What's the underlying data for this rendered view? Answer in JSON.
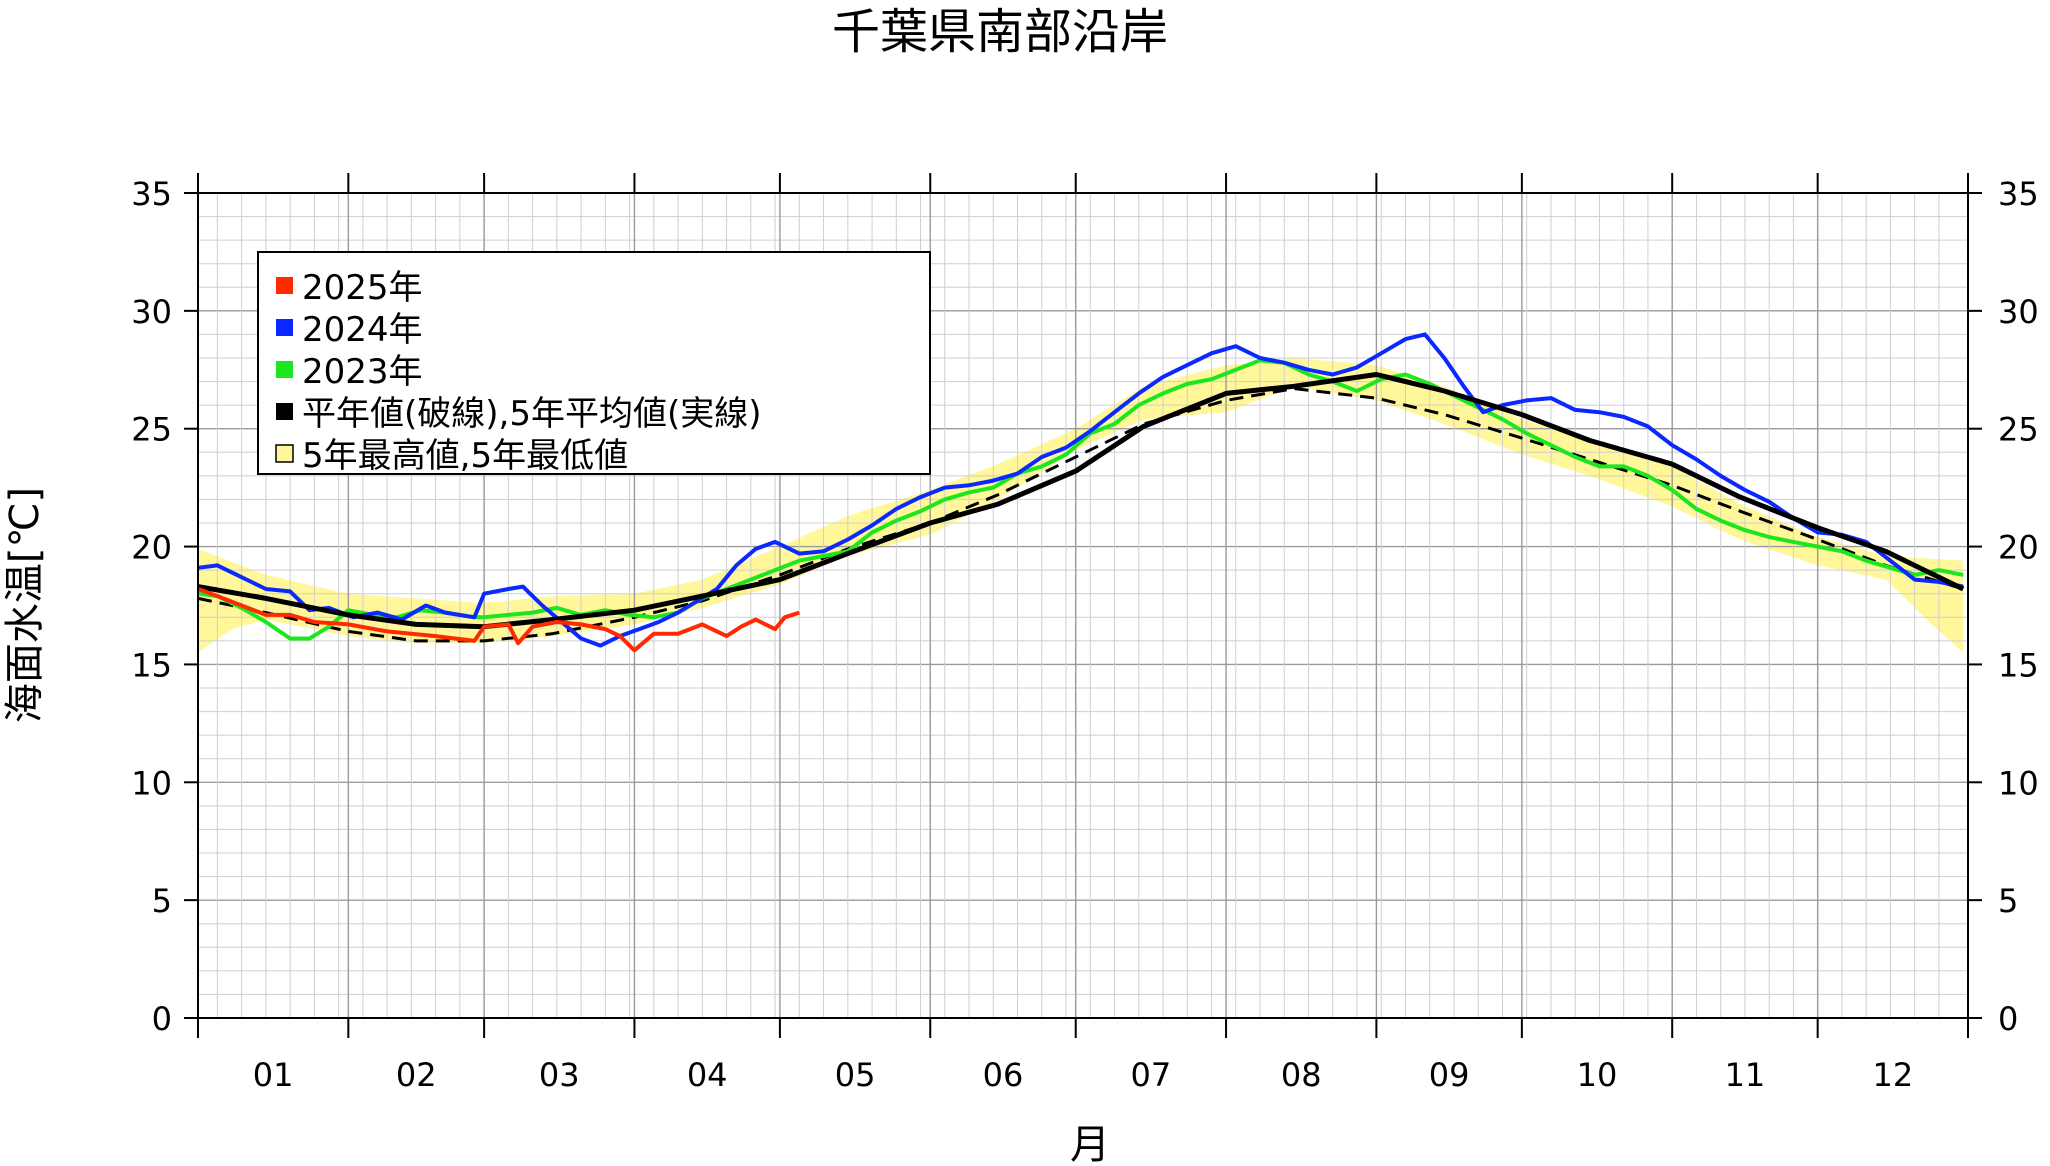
{
  "chart_data": {
    "type": "line",
    "title": "千葉県南部沿岸",
    "xlabel": "月",
    "ylabel": "海面水温[℃]",
    "ylim": [
      0,
      35
    ],
    "yticks": [
      "0",
      "5",
      "10",
      "15",
      "20",
      "25",
      "30",
      "35"
    ],
    "months": [
      "01",
      "02",
      "03",
      "04",
      "05",
      "06",
      "07",
      "08",
      "09",
      "10",
      "11",
      "12"
    ],
    "grid": true,
    "legend_position": "top-left",
    "legend": [
      {
        "label": "2025年",
        "color": "#ff2a00",
        "swatch": "solid"
      },
      {
        "label": "2024年",
        "color": "#0a28ff",
        "swatch": "solid"
      },
      {
        "label": "2023年",
        "color": "#1ee61e",
        "swatch": "solid"
      },
      {
        "label": "平年値(破線),5年平均値(実線)",
        "color": "#000000",
        "swatch": "solid"
      },
      {
        "label": "5年最高値,5年最低値",
        "color": "#fff799",
        "swatch": "box"
      }
    ],
    "colors": {
      "y2025": "#ff2a00",
      "y2024": "#0a28ff",
      "y2023": "#1ee61e",
      "mean": "#000000",
      "band": "#fff799"
    },
    "band_max": [
      [
        1,
        19.9
      ],
      [
        15,
        18.8
      ],
      [
        32,
        18.0
      ],
      [
        46,
        17.8
      ],
      [
        60,
        17.6
      ],
      [
        74,
        17.9
      ],
      [
        91,
        18.0
      ],
      [
        105,
        18.6
      ],
      [
        121,
        20.0
      ],
      [
        135,
        21.3
      ],
      [
        152,
        22.4
      ],
      [
        166,
        23.5
      ],
      [
        182,
        25.0
      ],
      [
        196,
        26.8
      ],
      [
        213,
        27.7
      ],
      [
        227,
        28.0
      ],
      [
        244,
        27.7
      ],
      [
        258,
        26.8
      ],
      [
        274,
        25.4
      ],
      [
        288,
        24.5
      ],
      [
        305,
        23.4
      ],
      [
        319,
        21.8
      ],
      [
        335,
        20.4
      ],
      [
        349,
        19.6
      ],
      [
        365,
        19.4
      ]
    ],
    "band_min": [
      [
        1,
        15.5
      ],
      [
        8,
        16.5
      ],
      [
        15,
        16.9
      ],
      [
        32,
        16.2
      ],
      [
        46,
        15.9
      ],
      [
        60,
        15.9
      ],
      [
        74,
        16.2
      ],
      [
        91,
        16.7
      ],
      [
        105,
        17.4
      ],
      [
        121,
        18.4
      ],
      [
        135,
        19.6
      ],
      [
        152,
        20.5
      ],
      [
        166,
        22.0
      ],
      [
        182,
        24.1
      ],
      [
        196,
        25.4
      ],
      [
        213,
        25.7
      ],
      [
        227,
        26.8
      ],
      [
        244,
        26.2
      ],
      [
        258,
        25.2
      ],
      [
        274,
        23.9
      ],
      [
        288,
        23.0
      ],
      [
        305,
        21.7
      ],
      [
        319,
        20.3
      ],
      [
        335,
        19.2
      ],
      [
        349,
        18.6
      ],
      [
        358,
        16.8
      ],
      [
        365,
        15.5
      ]
    ],
    "normal": [
      [
        1,
        17.8
      ],
      [
        15,
        17.2
      ],
      [
        32,
        16.4
      ],
      [
        46,
        16.0
      ],
      [
        60,
        16.0
      ],
      [
        74,
        16.3
      ],
      [
        91,
        17.0
      ],
      [
        105,
        17.7
      ],
      [
        121,
        18.8
      ],
      [
        135,
        19.9
      ],
      [
        152,
        21.0
      ],
      [
        166,
        22.2
      ],
      [
        182,
        23.8
      ],
      [
        196,
        25.2
      ],
      [
        213,
        26.2
      ],
      [
        227,
        26.7
      ],
      [
        244,
        26.3
      ],
      [
        258,
        25.6
      ],
      [
        274,
        24.6
      ],
      [
        288,
        23.7
      ],
      [
        305,
        22.6
      ],
      [
        319,
        21.5
      ],
      [
        335,
        20.3
      ],
      [
        349,
        19.2
      ],
      [
        365,
        18.2
      ]
    ],
    "mean5": [
      [
        1,
        18.3
      ],
      [
        15,
        17.8
      ],
      [
        32,
        17.1
      ],
      [
        46,
        16.7
      ],
      [
        60,
        16.6
      ],
      [
        74,
        16.9
      ],
      [
        91,
        17.3
      ],
      [
        105,
        17.9
      ],
      [
        121,
        18.6
      ],
      [
        135,
        19.7
      ],
      [
        152,
        21.0
      ],
      [
        166,
        21.8
      ],
      [
        182,
        23.2
      ],
      [
        196,
        25.1
      ],
      [
        213,
        26.5
      ],
      [
        227,
        26.8
      ],
      [
        244,
        27.3
      ],
      [
        258,
        26.6
      ],
      [
        274,
        25.6
      ],
      [
        288,
        24.5
      ],
      [
        305,
        23.5
      ],
      [
        319,
        22.1
      ],
      [
        335,
        20.8
      ],
      [
        349,
        19.8
      ],
      [
        365,
        18.2
      ]
    ],
    "y2025": [
      [
        1,
        18.2
      ],
      [
        5,
        17.9
      ],
      [
        10,
        17.5
      ],
      [
        15,
        17.1
      ],
      [
        20,
        17.1
      ],
      [
        25,
        16.8
      ],
      [
        32,
        16.7
      ],
      [
        40,
        16.4
      ],
      [
        50,
        16.2
      ],
      [
        58,
        16.0
      ],
      [
        60,
        16.6
      ],
      [
        65,
        16.7
      ],
      [
        67,
        15.9
      ],
      [
        70,
        16.6
      ],
      [
        75,
        16.8
      ],
      [
        80,
        16.7
      ],
      [
        85,
        16.5
      ],
      [
        88,
        16.2
      ],
      [
        91,
        15.6
      ],
      [
        95,
        16.3
      ],
      [
        100,
        16.3
      ],
      [
        105,
        16.7
      ],
      [
        108,
        16.4
      ],
      [
        110,
        16.2
      ],
      [
        113,
        16.6
      ],
      [
        116,
        16.9
      ],
      [
        120,
        16.5
      ],
      [
        122,
        17.0
      ],
      [
        125,
        17.2
      ]
    ],
    "y2024": [
      [
        1,
        19.1
      ],
      [
        5,
        19.2
      ],
      [
        10,
        18.7
      ],
      [
        15,
        18.2
      ],
      [
        20,
        18.1
      ],
      [
        24,
        17.3
      ],
      [
        28,
        17.4
      ],
      [
        33,
        17.0
      ],
      [
        38,
        17.2
      ],
      [
        43,
        16.9
      ],
      [
        48,
        17.5
      ],
      [
        52,
        17.2
      ],
      [
        58,
        17.0
      ],
      [
        60,
        18.0
      ],
      [
        65,
        18.2
      ],
      [
        68,
        18.3
      ],
      [
        72,
        17.5
      ],
      [
        76,
        16.8
      ],
      [
        80,
        16.1
      ],
      [
        84,
        15.8
      ],
      [
        88,
        16.2
      ],
      [
        92,
        16.5
      ],
      [
        96,
        16.8
      ],
      [
        100,
        17.2
      ],
      [
        104,
        17.7
      ],
      [
        108,
        18.2
      ],
      [
        112,
        19.2
      ],
      [
        116,
        19.9
      ],
      [
        120,
        20.2
      ],
      [
        125,
        19.7
      ],
      [
        130,
        19.8
      ],
      [
        135,
        20.3
      ],
      [
        140,
        20.9
      ],
      [
        145,
        21.6
      ],
      [
        150,
        22.1
      ],
      [
        155,
        22.5
      ],
      [
        160,
        22.6
      ],
      [
        165,
        22.8
      ],
      [
        170,
        23.1
      ],
      [
        175,
        23.8
      ],
      [
        180,
        24.2
      ],
      [
        185,
        24.9
      ],
      [
        190,
        25.7
      ],
      [
        195,
        26.5
      ],
      [
        200,
        27.2
      ],
      [
        205,
        27.7
      ],
      [
        210,
        28.2
      ],
      [
        215,
        28.5
      ],
      [
        220,
        28.0
      ],
      [
        225,
        27.8
      ],
      [
        230,
        27.5
      ],
      [
        235,
        27.3
      ],
      [
        240,
        27.6
      ],
      [
        245,
        28.2
      ],
      [
        250,
        28.8
      ],
      [
        254,
        29.0
      ],
      [
        258,
        28.0
      ],
      [
        262,
        26.8
      ],
      [
        266,
        25.7
      ],
      [
        270,
        26.0
      ],
      [
        275,
        26.2
      ],
      [
        280,
        26.3
      ],
      [
        285,
        25.8
      ],
      [
        290,
        25.7
      ],
      [
        295,
        25.5
      ],
      [
        300,
        25.1
      ],
      [
        305,
        24.3
      ],
      [
        310,
        23.7
      ],
      [
        315,
        23.0
      ],
      [
        320,
        22.4
      ],
      [
        325,
        21.9
      ],
      [
        330,
        21.2
      ],
      [
        335,
        20.6
      ],
      [
        340,
        20.5
      ],
      [
        345,
        20.2
      ],
      [
        350,
        19.4
      ],
      [
        355,
        18.6
      ],
      [
        360,
        18.5
      ],
      [
        365,
        18.3
      ]
    ],
    "y2023": [
      [
        1,
        18.0
      ],
      [
        5,
        17.9
      ],
      [
        10,
        17.4
      ],
      [
        15,
        16.8
      ],
      [
        20,
        16.1
      ],
      [
        24,
        16.1
      ],
      [
        28,
        16.6
      ],
      [
        32,
        17.3
      ],
      [
        37,
        17.1
      ],
      [
        42,
        17.0
      ],
      [
        47,
        17.3
      ],
      [
        52,
        17.2
      ],
      [
        58,
        17.0
      ],
      [
        60,
        17.0
      ],
      [
        65,
        17.1
      ],
      [
        70,
        17.2
      ],
      [
        75,
        17.4
      ],
      [
        80,
        17.1
      ],
      [
        85,
        17.3
      ],
      [
        90,
        17.1
      ],
      [
        95,
        17.0
      ],
      [
        100,
        17.2
      ],
      [
        105,
        17.8
      ],
      [
        110,
        18.2
      ],
      [
        115,
        18.6
      ],
      [
        120,
        19.0
      ],
      [
        125,
        19.4
      ],
      [
        130,
        19.6
      ],
      [
        135,
        19.8
      ],
      [
        140,
        20.6
      ],
      [
        145,
        21.1
      ],
      [
        150,
        21.5
      ],
      [
        155,
        22.0
      ],
      [
        160,
        22.3
      ],
      [
        165,
        22.5
      ],
      [
        170,
        23.1
      ],
      [
        175,
        23.4
      ],
      [
        180,
        23.9
      ],
      [
        185,
        24.8
      ],
      [
        190,
        25.2
      ],
      [
        195,
        26.0
      ],
      [
        200,
        26.5
      ],
      [
        205,
        26.9
      ],
      [
        210,
        27.1
      ],
      [
        215,
        27.5
      ],
      [
        220,
        27.9
      ],
      [
        225,
        27.8
      ],
      [
        230,
        27.3
      ],
      [
        235,
        27.0
      ],
      [
        240,
        26.6
      ],
      [
        245,
        27.1
      ],
      [
        250,
        27.3
      ],
      [
        255,
        26.9
      ],
      [
        260,
        26.4
      ],
      [
        265,
        25.9
      ],
      [
        270,
        25.4
      ],
      [
        275,
        24.8
      ],
      [
        280,
        24.3
      ],
      [
        285,
        23.8
      ],
      [
        290,
        23.4
      ],
      [
        295,
        23.4
      ],
      [
        300,
        23.0
      ],
      [
        305,
        22.4
      ],
      [
        310,
        21.6
      ],
      [
        315,
        21.1
      ],
      [
        320,
        20.7
      ],
      [
        325,
        20.4
      ],
      [
        330,
        20.2
      ],
      [
        335,
        20.0
      ],
      [
        340,
        19.8
      ],
      [
        345,
        19.4
      ],
      [
        350,
        19.1
      ],
      [
        355,
        18.8
      ],
      [
        360,
        19.0
      ],
      [
        365,
        18.8
      ]
    ]
  }
}
